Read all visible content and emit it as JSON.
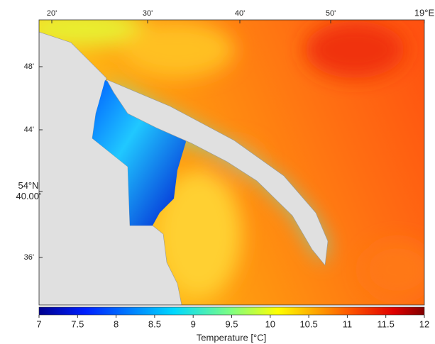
{
  "map": {
    "top_labels": [
      "20'",
      "30'",
      "40'",
      "50'",
      "19°E"
    ],
    "left_labels": [
      [
        "48'"
      ],
      [
        "44'"
      ],
      [
        "54°N",
        "40.00'"
      ],
      [
        "36'"
      ]
    ]
  },
  "colorbar": {
    "lim": [
      7,
      12
    ],
    "ticks": [
      7,
      7.5,
      8,
      8.5,
      9,
      9.5,
      10,
      10.5,
      11,
      11.5,
      12
    ],
    "label": "Temperature [°C]"
  }
}
